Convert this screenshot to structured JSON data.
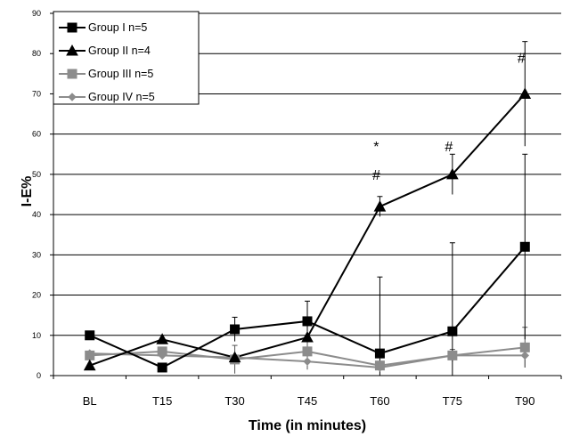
{
  "chart_data": {
    "type": "line",
    "title": "",
    "xlabel": "Time (in minutes)",
    "ylabel": "I-E%",
    "categories": [
      "BL",
      "T15",
      "T30",
      "T45",
      "T60",
      "T75",
      "T90"
    ],
    "ylim": [
      0,
      90
    ],
    "yticks": [
      "0",
      "10",
      "20",
      "30",
      "40",
      "50",
      "60",
      "70",
      "80",
      "90"
    ],
    "grid": "horizontal",
    "legend_position": "top-left",
    "series": [
      {
        "name": "Group I n=5",
        "marker": "square",
        "color": "#000000",
        "values": [
          10,
          2,
          11.5,
          13.5,
          5.5,
          11,
          32
        ],
        "error": [
          null,
          null,
          3,
          5,
          19,
          22,
          23
        ]
      },
      {
        "name": "Group II n=4",
        "marker": "triangle",
        "color": "#000000",
        "values": [
          2.5,
          9,
          4.5,
          9.5,
          42,
          50,
          70
        ],
        "error": [
          null,
          null,
          null,
          null,
          2.5,
          5,
          13
        ]
      },
      {
        "name": "Group III n=5",
        "marker": "square",
        "color": "#8c8c8c",
        "values": [
          5,
          6,
          4,
          6,
          2.5,
          5,
          7
        ],
        "error": [
          null,
          null,
          3.5,
          2.5,
          null,
          1.5,
          5
        ]
      },
      {
        "name": "Group IV n=5",
        "marker": "diamond",
        "color": "#8c8c8c",
        "values": [
          5.5,
          5,
          4.5,
          3.5,
          2,
          5,
          5
        ],
        "error": [
          null,
          null,
          null,
          2,
          null,
          null,
          3
        ]
      }
    ],
    "annotations": [
      {
        "text": "*",
        "category": "T60",
        "y": 57
      },
      {
        "text": "#",
        "category": "T60",
        "y": 50
      },
      {
        "text": "#",
        "category": "T75",
        "y": 57
      },
      {
        "text": "#",
        "category": "T90",
        "y": 79
      }
    ]
  }
}
